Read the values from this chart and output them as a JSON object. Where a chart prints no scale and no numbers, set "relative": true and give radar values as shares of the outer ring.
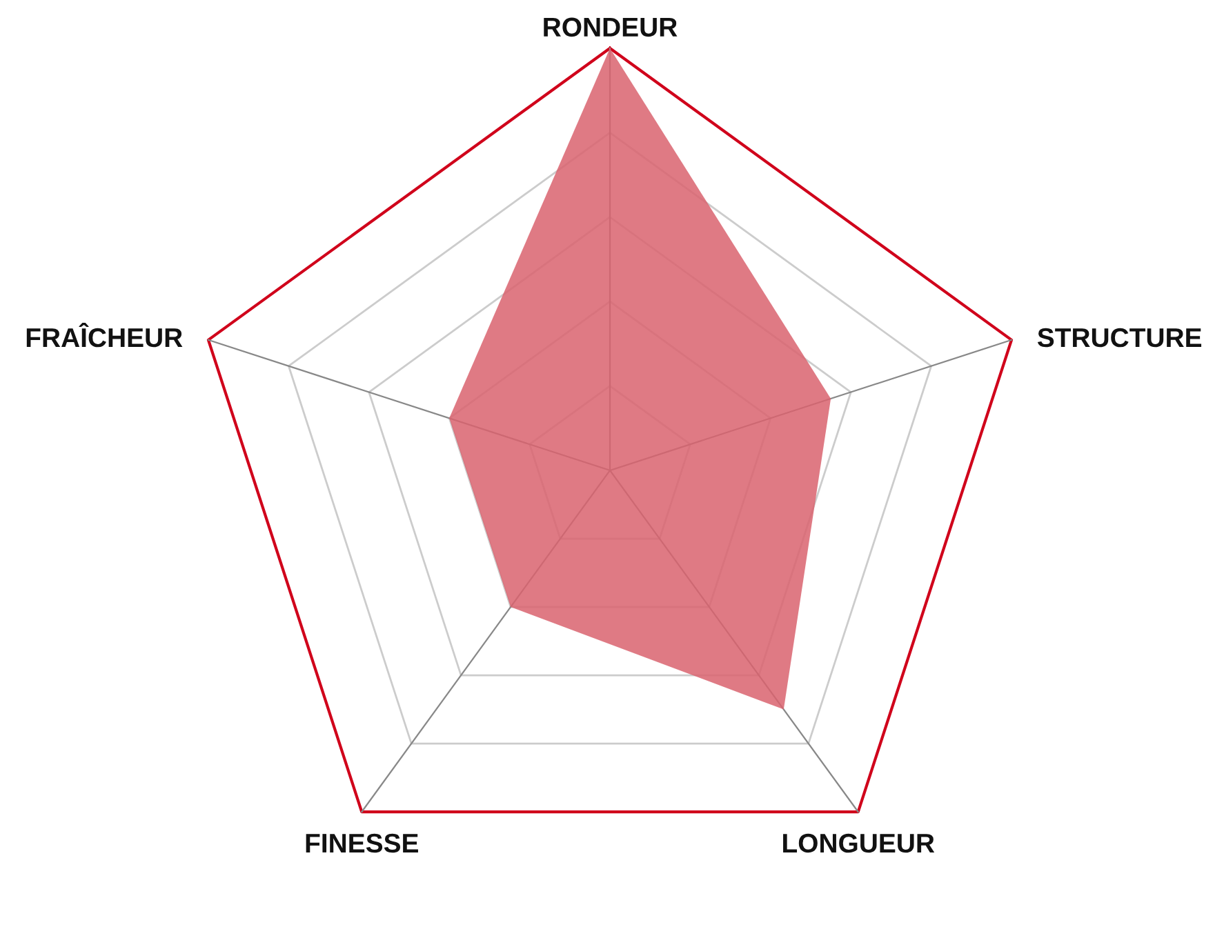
{
  "chart_data": {
    "type": "radar",
    "relative": true,
    "categories": [
      "RONDEUR",
      "STRUCTURE",
      "LONGUEUR",
      "FINESSE",
      "FRAÎCHEUR"
    ],
    "series": [
      {
        "color": "#d9636e",
        "values": [
          1.0,
          0.55,
          0.7,
          0.4,
          0.4
        ]
      }
    ],
    "grid": true
  }
}
